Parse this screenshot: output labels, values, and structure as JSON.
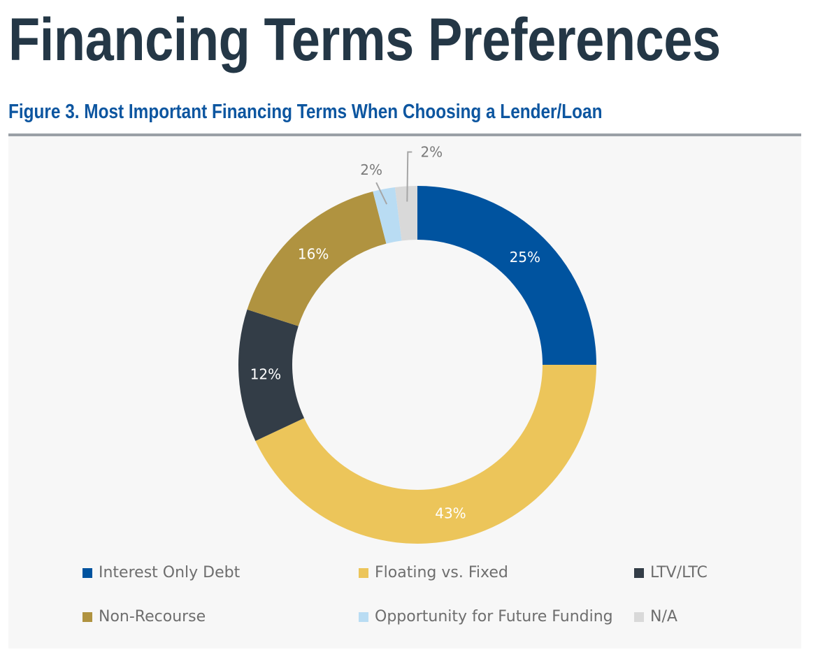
{
  "page_title": "Financing Terms Preferences",
  "chart_data": {
    "type": "pie",
    "variant": "donut",
    "title": "Figure 3. Most Important Financing Terms When Choosing a Lender/Loan",
    "categories": [
      "Interest Only Debt",
      "Floating vs. Fixed",
      "LTV/LTC",
      "Non-Recourse",
      "Opportunity for Future Funding",
      "N/A"
    ],
    "values": [
      25,
      43,
      12,
      16,
      2,
      2
    ],
    "labels": [
      "25%",
      "43%",
      "12%",
      "16%",
      "2%",
      "2%"
    ],
    "colors": [
      "#00539f",
      "#ecc55a",
      "#333d47",
      "#b09340",
      "#b9dcf3",
      "#d9d9d9"
    ],
    "legend_position": "bottom"
  }
}
